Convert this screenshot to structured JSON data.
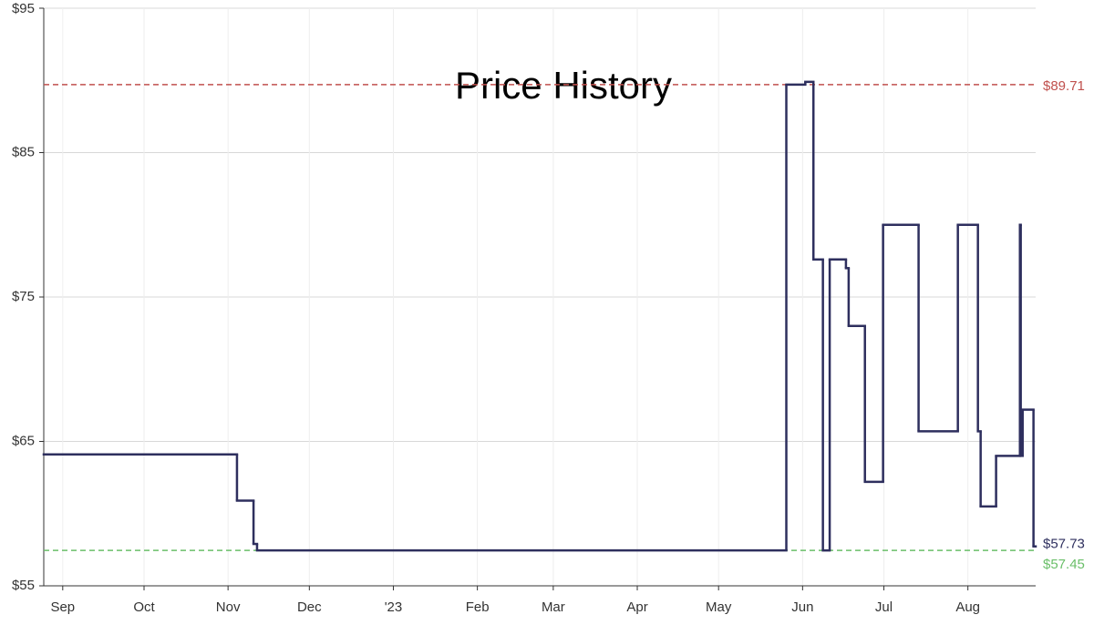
{
  "chart_data": {
    "type": "step",
    "title": "Price History",
    "xlim": [
      -7,
      359
    ],
    "ylim": [
      55,
      95
    ],
    "xticks": [
      {
        "value": 0,
        "label": "Sep"
      },
      {
        "value": 30,
        "label": "Oct"
      },
      {
        "value": 61,
        "label": "Nov"
      },
      {
        "value": 91,
        "label": "Dec"
      },
      {
        "value": 122,
        "label": "'23"
      },
      {
        "value": 153,
        "label": "Feb"
      },
      {
        "value": 181,
        "label": "Mar"
      },
      {
        "value": 212,
        "label": "Apr"
      },
      {
        "value": 242,
        "label": "May"
      },
      {
        "value": 273,
        "label": "Jun"
      },
      {
        "value": 303,
        "label": "Jul"
      },
      {
        "value": 334,
        "label": "Aug"
      }
    ],
    "yticks": [
      {
        "value": 55,
        "label": "$55"
      },
      {
        "value": 65,
        "label": "$65"
      },
      {
        "value": 75,
        "label": "$75"
      },
      {
        "value": 85,
        "label": "$85"
      },
      {
        "value": 95,
        "label": "$95"
      }
    ],
    "grid": true,
    "series": [
      {
        "color": "#2e2f5e",
        "x": [
          -7,
          64.3,
          70.4,
          71.7,
          267,
          274,
          277,
          280.5,
          283,
          289,
          290,
          296,
          302.7,
          315.8,
          330.3,
          337.7,
          338.7,
          344.4,
          353.2,
          353.5,
          354.2,
          358.2
        ],
        "values": [
          64.1,
          60.9,
          57.9,
          57.45,
          89.71,
          89.9,
          77.6,
          57.45,
          77.6,
          77.0,
          73.0,
          62.2,
          80.0,
          65.7,
          80.0,
          65.7,
          60.5,
          64.0,
          80.0,
          64.0,
          67.2,
          57.73
        ]
      }
    ],
    "reference_lines": [
      {
        "value": 89.71,
        "label": "$89.71",
        "color": "#c0504d"
      },
      {
        "value": 57.45,
        "label": "$57.45",
        "color": "#6abf69"
      }
    ],
    "current": {
      "value": 57.73,
      "label": "$57.73",
      "color": "#2e2f5e"
    }
  }
}
